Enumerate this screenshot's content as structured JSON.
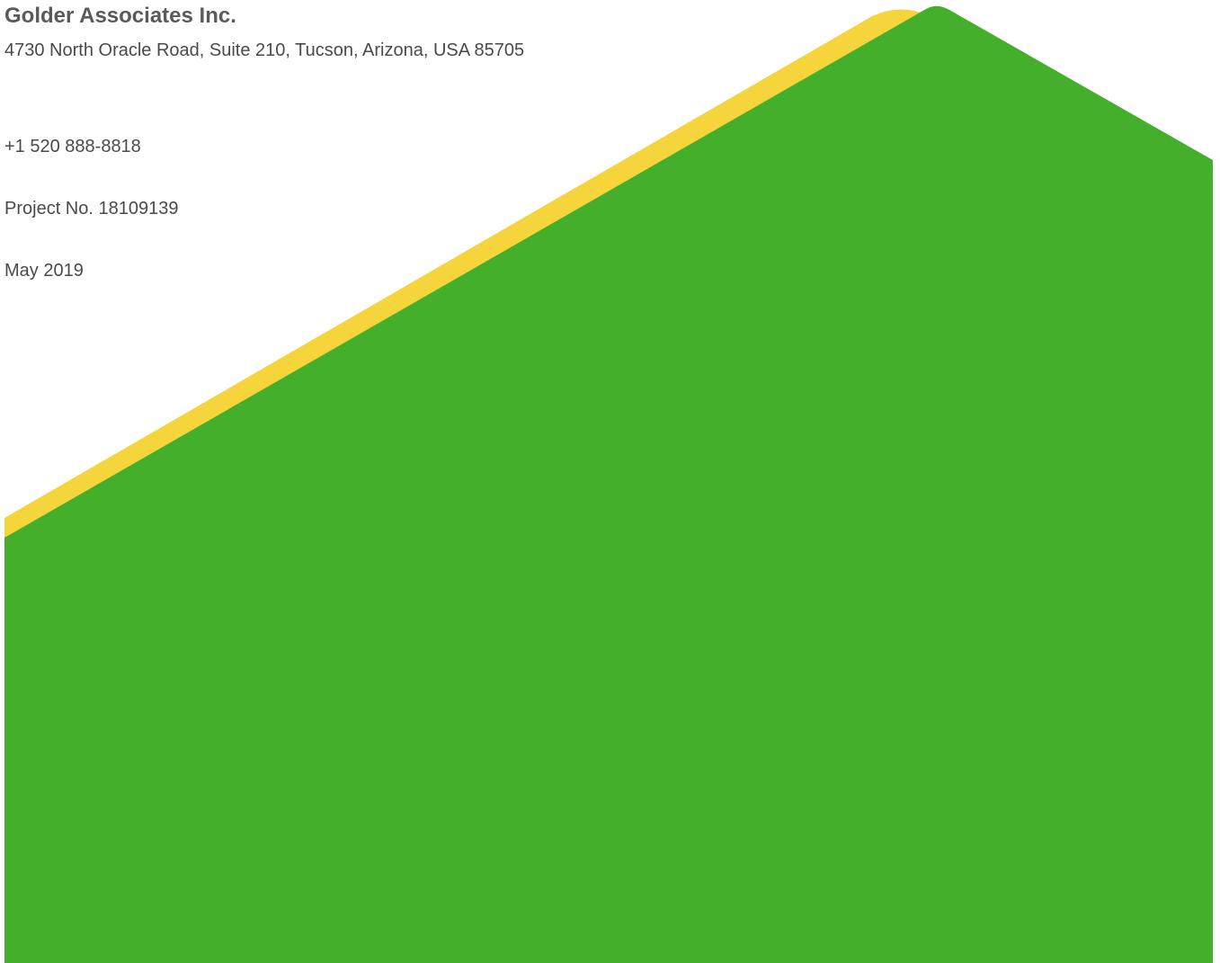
{
  "company": {
    "name": "Golder Associates Inc.",
    "address": "4730 North Oracle Road, Suite 210, Tucson, Arizona, USA 85705",
    "phone": "+1 520 888-8818"
  },
  "project": {
    "number_label": "Project No. 18109139",
    "date": "May 2019"
  },
  "colors": {
    "brand_green": "#44af2a",
    "accent_yellow": "#f6d43c",
    "text_dark": "#5a5a5a"
  }
}
